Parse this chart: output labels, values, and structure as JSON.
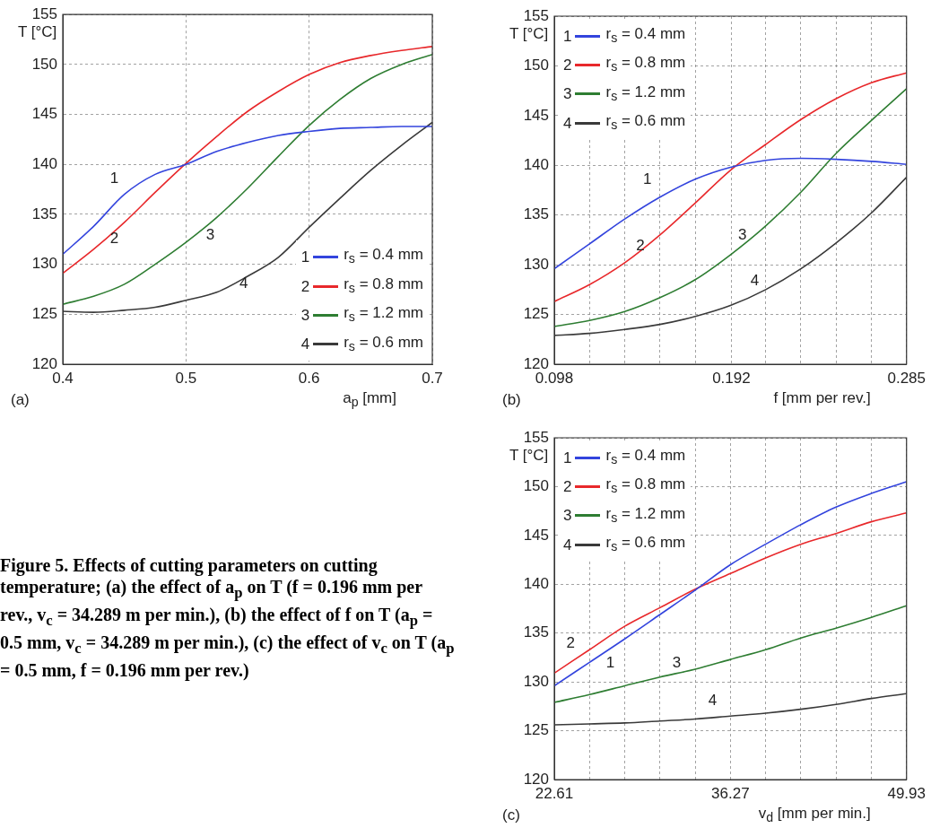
{
  "chart_data": [
    {
      "type": "line",
      "xlabel": "a$_{p}$ [mm]",
      "ylabel": "T [°C]",
      "xlim": [
        0.4,
        0.7
      ],
      "xticks": [
        0.4,
        0.5,
        0.6,
        0.7
      ],
      "ylim": [
        120,
        155
      ],
      "yticks": [
        120,
        125,
        130,
        135,
        140,
        145,
        150,
        155
      ],
      "grid": true,
      "legend": "bottom right",
      "x": [
        0.4,
        0.425,
        0.45,
        0.475,
        0.5,
        0.525,
        0.55,
        0.575,
        0.6,
        0.625,
        0.65,
        0.675,
        0.7
      ],
      "series": [
        {
          "name": "r$_{s}$ = 0.4 mm",
          "color": "#3344dd",
          "values": [
            131,
            133.8,
            137,
            139,
            140,
            141.3,
            142.2,
            142.9,
            143.3,
            143.6,
            143.7,
            143.8,
            143.8
          ]
        },
        {
          "name": "r$_{s}$ = 0.8 mm",
          "color": "#e8282b",
          "values": [
            129.1,
            131.5,
            134.2,
            137.2,
            140.1,
            142.8,
            145.3,
            147.3,
            149,
            150.2,
            150.9,
            151.4,
            151.8
          ]
        },
        {
          "name": "r$_{s}$ = 1.2 mm",
          "color": "#2e7d32",
          "values": [
            126,
            126.8,
            128,
            130,
            132.2,
            134.7,
            137.6,
            140.8,
            143.9,
            146.5,
            148.6,
            150,
            151
          ]
        },
        {
          "name": "r$_{s}$ = 0.6 mm",
          "color": "#3a3a3a",
          "values": [
            125.3,
            125.2,
            125.4,
            125.7,
            126.4,
            127.2,
            128.8,
            130.7,
            133.7,
            136.6,
            139.4,
            141.9,
            144.2
          ]
        }
      ],
      "annotations": [
        "(a)",
        "1",
        "2",
        "3",
        "4",
        "1",
        "2",
        "3",
        "4"
      ]
    },
    {
      "type": "line",
      "xlabel": "f [mm per rev.]",
      "ylabel": "T [°C]",
      "xlim": [
        0.098,
        0.285
      ],
      "xticks": [
        0.098,
        {
          "value": 0.1167,
          "label": null
        },
        {
          "value": 0.1354,
          "label": null
        },
        {
          "value": 0.1541,
          "label": null
        },
        {
          "value": 0.1728,
          "label": null
        },
        0.192,
        {
          "value": 0.2102,
          "label": null
        },
        {
          "value": 0.2289,
          "label": null
        },
        {
          "value": 0.2476,
          "label": null
        },
        {
          "value": 0.2663,
          "label": null
        },
        0.285
      ],
      "ylim": [
        120,
        155
      ],
      "yticks": [
        120,
        125,
        130,
        135,
        140,
        145,
        150,
        155
      ],
      "grid": true,
      "legend": "top left",
      "x": [
        0.098,
        0.1167,
        0.1354,
        0.1541,
        0.1728,
        0.1915,
        0.2102,
        0.2289,
        0.2476,
        0.2663,
        0.285
      ],
      "series": [
        {
          "name": "r$_{s}$ = 0.4 mm",
          "color": "#3344dd",
          "values": [
            129.6,
            132.1,
            134.6,
            136.8,
            138.6,
            139.8,
            140.5,
            140.7,
            140.6,
            140.4,
            140.1
          ]
        },
        {
          "name": "r$_{s}$ = 0.8 mm",
          "color": "#e8282b",
          "values": [
            126.3,
            128,
            130.2,
            133,
            136.2,
            139.5,
            142.1,
            144.6,
            146.7,
            148.3,
            149.3
          ]
        },
        {
          "name": "r$_{s}$ = 1.2 mm",
          "color": "#2e7d32",
          "values": [
            123.8,
            124.4,
            125.3,
            126.7,
            128.5,
            131,
            133.9,
            137.3,
            141.2,
            144.5,
            147.7
          ]
        },
        {
          "name": "r$_{s}$ = 0.6 mm",
          "color": "#3a3a3a",
          "values": [
            122.9,
            123.1,
            123.5,
            124,
            124.8,
            125.9,
            127.5,
            129.6,
            132.2,
            135.2,
            138.8
          ]
        }
      ],
      "annotations": [
        "(b)",
        "1",
        "2",
        "3",
        "4",
        "1",
        "2",
        "3",
        "4"
      ]
    },
    {
      "type": "other",
      "title": "Figure 5. Effects of cutting parameters on cutting temperature; (a) the effect of a$_{p}$ on T (f = 0.196 mm per rev., v$_{c}$ = 34.289 m per min.), (b) the effect of f on T (a$_{p}$ = 0.5 mm, v$_{c}$ = 34.289 m per min.), (c) the effect of v$_{c}$ on T (a$_{p}$ = 0.5 mm, f = 0.196 mm per rev.)"
    },
    {
      "type": "line",
      "xlabel": "v$_{d}$ [mm per min.]",
      "ylabel": "T [°C]",
      "xlim": [
        22.61,
        49.93
      ],
      "xticks": [
        22.61,
        {
          "value": 25.342,
          "label": null
        },
        {
          "value": 28.074,
          "label": null
        },
        {
          "value": 30.806,
          "label": null
        },
        {
          "value": 33.538,
          "label": null
        },
        36.27,
        {
          "value": 39.002,
          "label": null
        },
        {
          "value": 41.734,
          "label": null
        },
        {
          "value": 44.466,
          "label": null
        },
        {
          "value": 47.198,
          "label": null
        },
        49.93
      ],
      "ylim": [
        120,
        155
      ],
      "yticks": [
        120,
        125,
        130,
        135,
        140,
        145,
        150,
        155
      ],
      "grid": true,
      "legend": "top left",
      "x": [
        22.61,
        25.34,
        28.07,
        30.81,
        33.54,
        36.27,
        39,
        41.73,
        44.46,
        47.2,
        49.93
      ],
      "series": [
        {
          "name": "r$_{s}$ = 0.4 mm",
          "color": "#3344dd",
          "values": [
            129.6,
            132,
            134.4,
            136.9,
            139.4,
            142,
            144.1,
            146.1,
            147.9,
            149.3,
            150.5
          ]
        },
        {
          "name": "r$_{s}$ = 0.8 mm",
          "color": "#e8282b",
          "values": [
            130.9,
            133.3,
            135.7,
            137.6,
            139.5,
            141.1,
            142.7,
            144.1,
            145.2,
            146.4,
            147.3
          ]
        },
        {
          "name": "r$_{s}$ = 1.2 mm",
          "color": "#2e7d32",
          "values": [
            127.9,
            128.7,
            129.6,
            130.5,
            131.3,
            132.3,
            133.3,
            134.5,
            135.5,
            136.6,
            137.8
          ]
        },
        {
          "name": "r$_{s}$ = 0.6 mm",
          "color": "#3a3a3a",
          "values": [
            125.6,
            125.7,
            125.8,
            126,
            126.2,
            126.5,
            126.8,
            127.2,
            127.7,
            128.3,
            128.8
          ]
        }
      ],
      "annotations": [
        "(c)",
        "2",
        "1",
        "3",
        "4",
        "1",
        "2",
        "3",
        "4"
      ]
    }
  ]
}
